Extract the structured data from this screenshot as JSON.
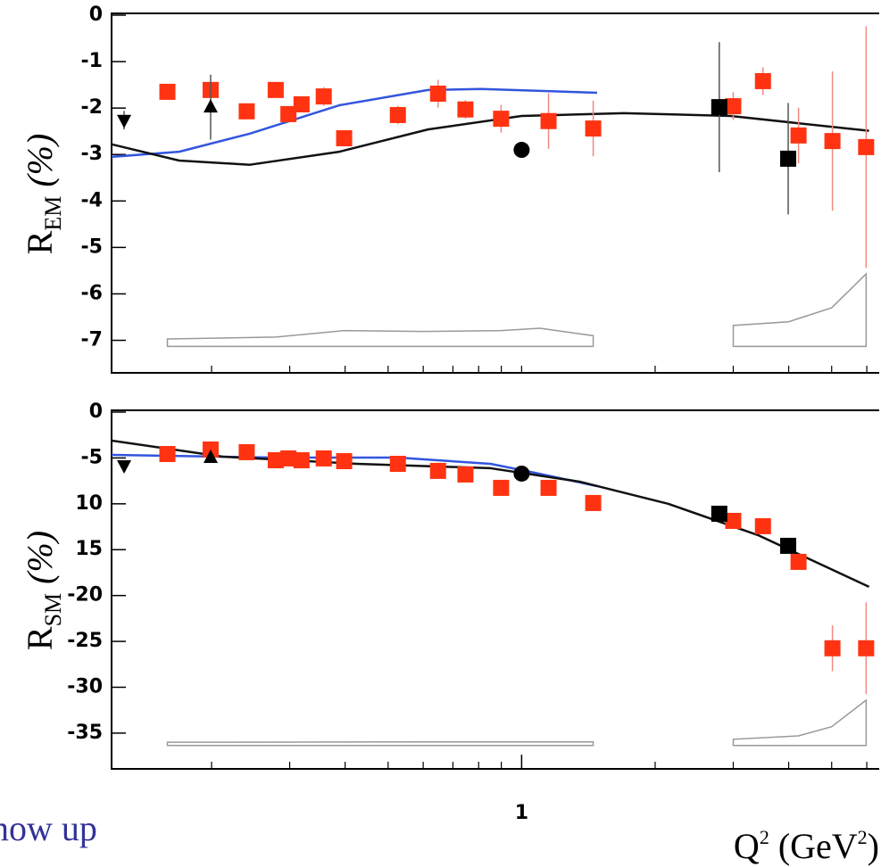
{
  "chart_data": [
    {
      "type": "scatter",
      "ylabel": [
        "R",
        "EM",
        "(%)"
      ],
      "xscale": "log",
      "xlim": [
        0.119,
        6.4
      ],
      "ylim": [
        -7.7,
        0
      ],
      "yticks": [
        0,
        -1,
        -2,
        -3,
        -4,
        -5,
        -6,
        -7
      ],
      "xminor": [
        0.2,
        0.3,
        0.4,
        0.5,
        0.6,
        0.7,
        0.8,
        0.9,
        1,
        2,
        3,
        4,
        5,
        6
      ],
      "series": [
        {
          "kind": "band",
          "color": "#999999",
          "base": -7.13,
          "x": [
            0.159,
            0.279,
            0.398,
            0.6,
            0.9,
            1.1,
            1.45
          ],
          "values": [
            -6.97,
            -6.93,
            -6.79,
            -6.81,
            -6.79,
            -6.74,
            -6.9
          ]
        },
        {
          "kind": "band",
          "color": "#999999",
          "base": -7.13,
          "x": [
            3.0,
            4.0,
            5.0,
            5.98
          ],
          "values": [
            -6.68,
            -6.6,
            -6.3,
            -5.57
          ]
        },
        {
          "kind": "curve",
          "color": "#3355dd",
          "x": [
            0.119,
            0.169,
            0.244,
            0.388,
            0.615,
            0.812,
            1.48
          ],
          "values": [
            -3.05,
            -2.94,
            -2.55,
            -1.94,
            -1.61,
            -1.59,
            -1.67
          ]
        },
        {
          "kind": "curve",
          "color": "#111111",
          "x": [
            0.119,
            0.169,
            0.244,
            0.388,
            0.615,
            1.0,
            1.7,
            2.96,
            6.07
          ],
          "values": [
            -2.78,
            -3.13,
            -3.22,
            -2.94,
            -2.46,
            -2.17,
            -2.11,
            -2.17,
            -2.49
          ]
        },
        {
          "kind": "points",
          "marker": "square",
          "color": "#ff3311",
          "errcolor": "#f08a80",
          "x": [
            0.159,
            0.199,
            0.24,
            0.279,
            0.298,
            0.319,
            0.358,
            0.398,
            0.526,
            0.648,
            0.747,
            0.899,
            1.15,
            1.45,
            3.0,
            3.5,
            4.21,
            5.02,
            5.98
          ],
          "values": [
            -1.65,
            -1.61,
            -2.07,
            -1.61,
            -2.13,
            -1.92,
            -1.75,
            -2.65,
            -2.15,
            -1.69,
            -2.03,
            -2.23,
            -2.28,
            -2.44,
            -1.96,
            -1.42,
            -2.59,
            -2.71,
            -2.84
          ],
          "errors": [
            0.15,
            0.15,
            0.15,
            0.15,
            0.15,
            0.15,
            0.2,
            0.15,
            0.2,
            0.3,
            0.2,
            0.3,
            0.6,
            0.6,
            0.3,
            0.3,
            0.6,
            1.5,
            2.6
          ]
        },
        {
          "kind": "points",
          "marker": "tri-down",
          "color": "#000000",
          "errcolor": "#555555",
          "x": [
            0.127
          ],
          "values": [
            -2.26
          ],
          "errors": [
            0.2
          ]
        },
        {
          "kind": "points",
          "marker": "tri-up",
          "color": "#000000",
          "errcolor": "#555555",
          "x": [
            0.199
          ],
          "values": [
            -1.98
          ],
          "errors": [
            0.7
          ]
        },
        {
          "kind": "points",
          "marker": "circle",
          "color": "#000000",
          "errcolor": "#555555",
          "x": [
            1.0
          ],
          "values": [
            -2.9
          ],
          "errors": [
            0.1
          ]
        },
        {
          "kind": "points",
          "marker": "square",
          "color": "#000000",
          "errcolor": "#555555",
          "x": [
            2.79,
            3.99
          ],
          "values": [
            -1.98,
            -3.09
          ],
          "errors": [
            1.4,
            1.2
          ]
        }
      ]
    },
    {
      "type": "scatter",
      "ylabel": [
        "R",
        "SM",
        "(%)"
      ],
      "xlabel": [
        "Q",
        "2",
        "(GeV",
        "2",
        ")"
      ],
      "annotation": "now up",
      "xscale": "log",
      "xlim": [
        0.119,
        6.4
      ],
      "ylim": [
        -38.9,
        0
      ],
      "yticks": [
        0,
        -5,
        {
          "value": -10,
          "label": "10"
        },
        {
          "value": -15,
          "label": "15"
        },
        -20,
        -25,
        -30,
        -35
      ],
      "xticks": [
        1
      ],
      "xminor": [
        0.2,
        0.3,
        0.4,
        0.5,
        0.6,
        0.7,
        0.8,
        0.9,
        2,
        3,
        4,
        5,
        6
      ],
      "series": [
        {
          "kind": "band",
          "color": "#999999",
          "base": -36.35,
          "x": [
            0.159,
            0.6,
            1.45
          ],
          "values": [
            -36.0,
            -35.96,
            -35.96
          ]
        },
        {
          "kind": "band",
          "color": "#999999",
          "base": -36.35,
          "x": [
            3.0,
            4.21,
            5.0,
            5.98
          ],
          "values": [
            -35.67,
            -35.3,
            -34.3,
            -31.4
          ]
        },
        {
          "kind": "curve",
          "color": "#3355dd",
          "x": [
            0.119,
            0.279,
            0.526,
            0.851,
            1.07,
            1.48
          ],
          "values": [
            -4.66,
            -4.96,
            -4.96,
            -5.64,
            -6.61,
            -8.07
          ]
        },
        {
          "kind": "curve",
          "color": "#111111",
          "x": [
            0.119,
            0.212,
            0.425,
            0.851,
            1.35,
            2.14,
            3.41,
            6.07
          ],
          "values": [
            -3.11,
            -4.86,
            -5.64,
            -6.12,
            -7.58,
            -10.0,
            -13.41,
            -19.05
          ]
        },
        {
          "kind": "points",
          "marker": "square",
          "color": "#ff3311",
          "errcolor": "#f08a80",
          "x": [
            0.159,
            0.199,
            0.24,
            0.279,
            0.298,
            0.319,
            0.358,
            0.398,
            0.526,
            0.648,
            0.747,
            0.899,
            1.15,
            1.45,
            3.0,
            3.5,
            4.21,
            5.02,
            5.98
          ],
          "values": [
            -4.57,
            -4.08,
            -4.37,
            -5.25,
            -5.05,
            -5.25,
            -5.05,
            -5.35,
            -5.64,
            -6.41,
            -6.8,
            -8.26,
            -8.26,
            -9.91,
            -11.86,
            -12.44,
            -16.33,
            -25.75,
            -25.75
          ],
          "errors": [
            0.5,
            0.5,
            0.5,
            0.5,
            0.5,
            0.5,
            0.5,
            0.5,
            0.5,
            0.5,
            0.5,
            0.5,
            0.5,
            0.6,
            0.6,
            0.6,
            0.8,
            2.5,
            5.0
          ]
        },
        {
          "kind": "points",
          "marker": "tri-down",
          "color": "#000000",
          "errcolor": "#555555",
          "x": [
            0.127
          ],
          "values": [
            -5.83
          ],
          "errors": [
            0.5
          ]
        },
        {
          "kind": "points",
          "marker": "tri-up",
          "color": "#000000",
          "errcolor": "#555555",
          "x": [
            0.199
          ],
          "values": [
            -4.96
          ],
          "errors": [
            0.5
          ]
        },
        {
          "kind": "points",
          "marker": "circle",
          "color": "#000000",
          "errcolor": "#555555",
          "x": [
            1.0
          ],
          "values": [
            -6.71
          ],
          "errors": [
            0.3
          ]
        },
        {
          "kind": "points",
          "marker": "square",
          "color": "#000000",
          "errcolor": "#555555",
          "x": [
            2.79,
            3.99
          ],
          "values": [
            -11.08,
            -14.58
          ],
          "errors": [
            0.8,
            0.8
          ]
        }
      ]
    }
  ]
}
